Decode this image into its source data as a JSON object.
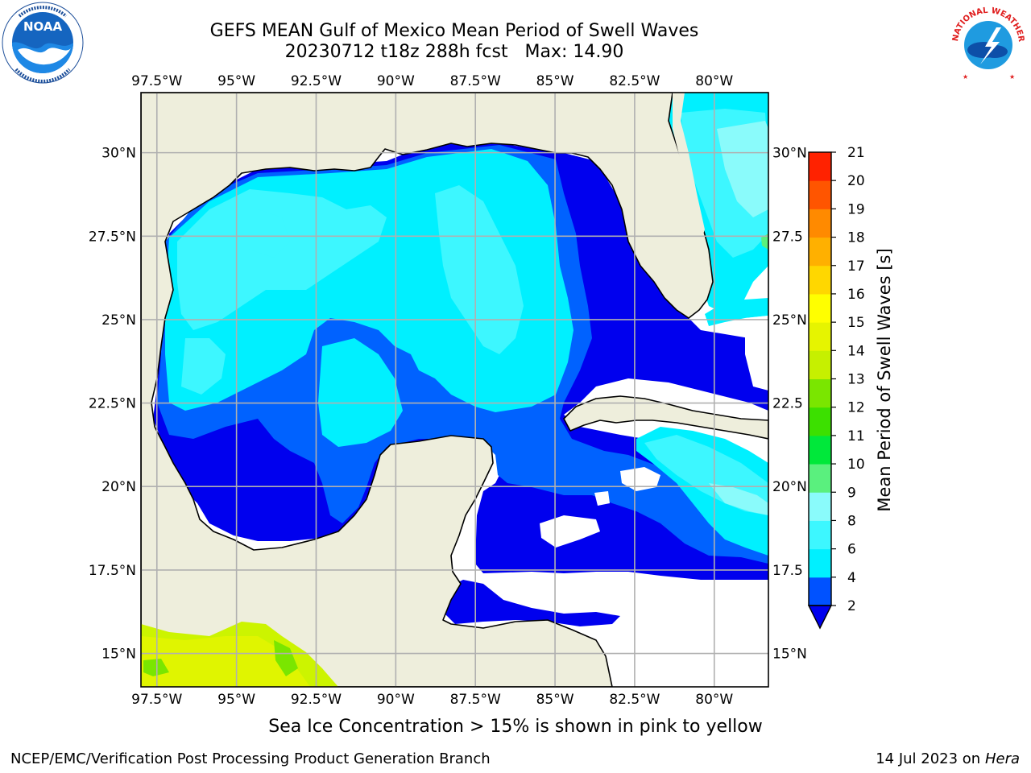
{
  "title": {
    "line1": "GEFS MEAN Gulf of Mexico Mean Period of Swell Waves",
    "line2": "20230712 t18z 288h fcst   Max: 14.90"
  },
  "map": {
    "region": "Gulf of Mexico",
    "lon_labels": [
      "97.5°W",
      "95°W",
      "92.5°W",
      "90°W",
      "87.5°W",
      "85°W",
      "82.5°W",
      "80°W"
    ],
    "lon_values": [
      -97.5,
      -95,
      -92.5,
      -90,
      -87.5,
      -85,
      -82.5,
      -80
    ],
    "lat_labels": [
      "30°N",
      "27.5°N",
      "25°N",
      "22.5°N",
      "20°N",
      "17.5°N",
      "15°N"
    ],
    "lat_labels_right": [
      "30°N",
      "27.5",
      "25°N",
      "22.5",
      "20°N",
      "17.5",
      "15°N"
    ],
    "lat_values": [
      30,
      27.5,
      25,
      22.5,
      20,
      17.5,
      15
    ],
    "extent": {
      "lon_min": -98.0,
      "lon_max": -78.3,
      "lat_min": 14.0,
      "lat_max": 31.8
    },
    "land_color": "#eeeedc",
    "grid": true
  },
  "colorbar": {
    "label": "Mean Period of Swell Waves [s]",
    "ticks": [
      "2",
      "4",
      "6",
      "8",
      "9",
      "10",
      "11",
      "12",
      "13",
      "14",
      "15",
      "16",
      "17",
      "18",
      "19",
      "20",
      "21"
    ],
    "tick_values": [
      2,
      4,
      6,
      8,
      9,
      10,
      11,
      12,
      13,
      14,
      15,
      16,
      17,
      18,
      19,
      20,
      21
    ],
    "colors": [
      "#0052ff",
      "#00f0ff",
      "#3df7ff",
      "#8afbfb",
      "#5af07e",
      "#00e83a",
      "#3ce000",
      "#7ae600",
      "#c6f000",
      "#e6f400",
      "#ffff00",
      "#ffd700",
      "#ffb000",
      "#ff8a00",
      "#ff5500",
      "#ff2200",
      "#ff0000"
    ],
    "underflow_color": "#0000ee",
    "extend": "min"
  },
  "caption": "Sea Ice Concentration > 15% is shown in pink to yellow",
  "credit": "NCEP/EMC/Verification Post Processing Product Generation Branch",
  "date": "14 Jul 2023 on ",
  "host": "Hera",
  "logos": {
    "left": "NOAA",
    "right": "NATIONAL WEATHER SERVICE"
  }
}
